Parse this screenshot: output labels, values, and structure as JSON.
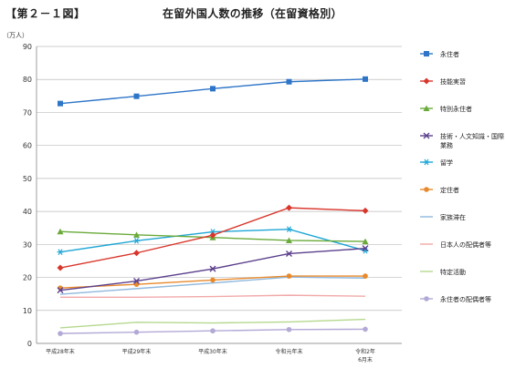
{
  "header": {
    "figure_label": "【第２－１図】",
    "title": "在留外国人数の推移（在留資格別）"
  },
  "chart_data": {
    "type": "line",
    "title": "在留外国人数の推移（在留資格別）",
    "ylabel": "（万人）",
    "xlabel": "",
    "ylim": [
      0,
      90
    ],
    "yticks": [
      0,
      10,
      20,
      30,
      40,
      50,
      60,
      70,
      80,
      90
    ],
    "grid": true,
    "legend_position": "right",
    "categories": [
      {
        "line1": "平成28年末",
        "line2": ""
      },
      {
        "line1": "平成29年末",
        "line2": ""
      },
      {
        "line1": "平成30年末",
        "line2": ""
      },
      {
        "line1": "令和元年末",
        "line2": ""
      },
      {
        "line1": "令和2年",
        "line2": "6月末"
      }
    ],
    "series": [
      {
        "name": "永住者",
        "legend_lines": [
          "永住者"
        ],
        "color": "#2e75c8",
        "marker": "square",
        "values": [
          72.7,
          74.9,
          77.2,
          79.3,
          80.1
        ]
      },
      {
        "name": "技能実習",
        "legend_lines": [
          "技能実習"
        ],
        "color": "#d9362b",
        "marker": "diamond",
        "values": [
          22.9,
          27.4,
          32.8,
          41.1,
          40.2
        ]
      },
      {
        "name": "特別永住者",
        "legend_lines": [
          "特別永住者"
        ],
        "color": "#6aaa3a",
        "marker": "triangle",
        "values": [
          33.9,
          32.9,
          32.1,
          31.2,
          30.9
        ]
      },
      {
        "name": "技術・人文知識・国際業務",
        "legend_lines": [
          "技術・人文知識・国際",
          "業務"
        ],
        "color": "#5b3f8c",
        "marker": "x",
        "values": [
          16.1,
          18.9,
          22.6,
          27.2,
          28.8
        ]
      },
      {
        "name": "留学",
        "legend_lines": [
          "留学"
        ],
        "color": "#1ea6d6",
        "marker": "star",
        "values": [
          27.7,
          31.1,
          33.8,
          34.6,
          28.1
        ]
      },
      {
        "name": "定住者",
        "legend_lines": [
          "定住者"
        ],
        "color": "#e8892b",
        "marker": "circle",
        "values": [
          16.8,
          17.9,
          19.2,
          20.4,
          20.4
        ]
      },
      {
        "name": "家族滞在",
        "legend_lines": [
          "家族滞在"
        ],
        "color": "#8fb8de",
        "marker": "none",
        "values": [
          14.9,
          16.6,
          18.3,
          20.1,
          19.8
        ]
      },
      {
        "name": "日本人の配偶者等",
        "legend_lines": [
          "日本人の配偶者等"
        ],
        "color": "#f2a9a9",
        "marker": "none",
        "values": [
          14.0,
          14.0,
          14.2,
          14.6,
          14.3
        ]
      },
      {
        "name": "特定活動",
        "legend_lines": [
          "特定活動"
        ],
        "color": "#b5d88e",
        "marker": "none",
        "values": [
          4.7,
          6.4,
          6.2,
          6.5,
          7.3
        ]
      },
      {
        "name": "永住者の配偶者等",
        "legend_lines": [
          "永住者の配偶者等"
        ],
        "color": "#b3a9d6",
        "marker": "circle",
        "values": [
          3.0,
          3.4,
          3.8,
          4.2,
          4.3
        ]
      }
    ]
  }
}
